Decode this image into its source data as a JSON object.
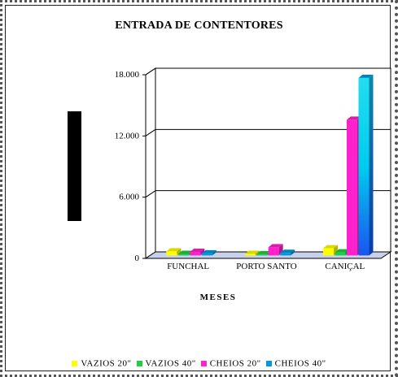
{
  "chart_data": {
    "type": "bar",
    "title": "ENTRADA DE CONTENTORES",
    "xlabel": "MESES",
    "ylabel": "",
    "categories": [
      "FUNCHAL",
      "PORTO SANTO",
      "CANIÇAL"
    ],
    "ylim": [
      0,
      18000
    ],
    "yticks": [
      0,
      6000,
      12000,
      18000
    ],
    "ytick_labels": [
      "0",
      "6.000",
      "12.000",
      "18.000"
    ],
    "grid": true,
    "legend_position": "bottom",
    "series": [
      {
        "name": "VAZIOS 20\"",
        "color": "#FFFF00",
        "values": [
          400,
          150,
          700
        ]
      },
      {
        "name": "VAZIOS 40\"",
        "color": "#22CC44",
        "values": [
          150,
          120,
          300
        ]
      },
      {
        "name": "CHEIOS 20\"",
        "color": "#FF22CC",
        "values": [
          350,
          800,
          13300
        ]
      },
      {
        "name": "CHEIOS 40\"",
        "color": "#0099DD",
        "values": [
          200,
          250,
          17400
        ]
      }
    ]
  }
}
